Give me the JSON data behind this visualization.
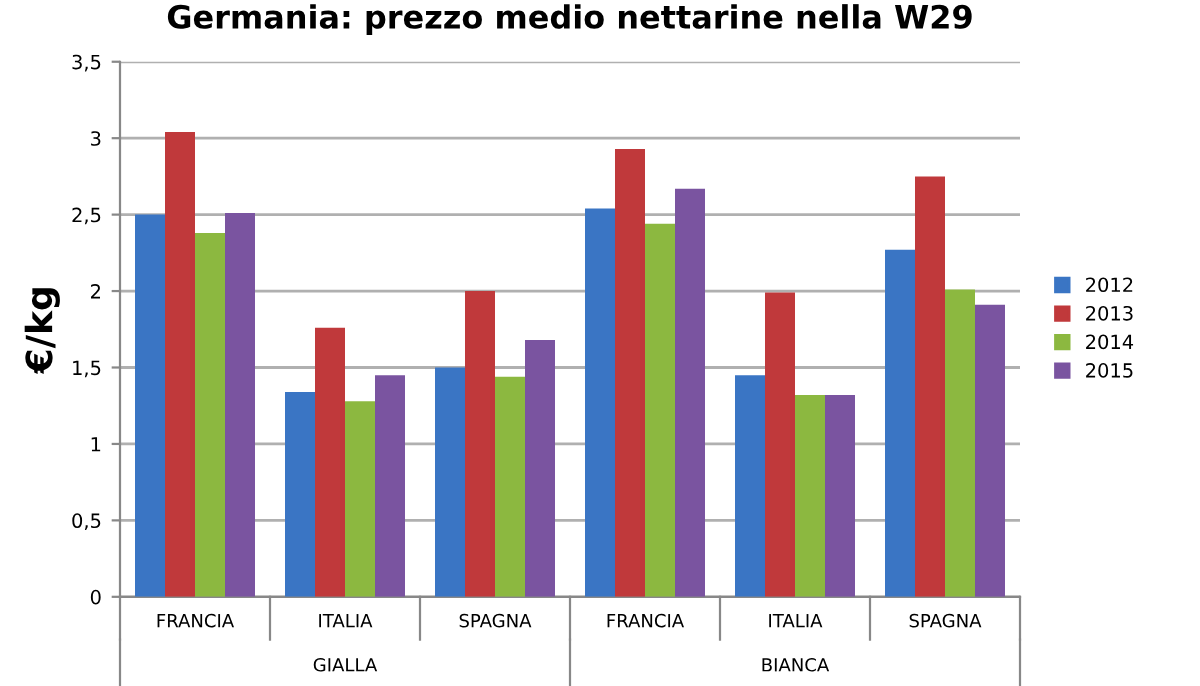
{
  "chart_data": {
    "type": "bar",
    "title": "Germania: prezzo medio nettarine nella W29",
    "ylabel": "€/kg",
    "categories": [
      "FRANCIA",
      "ITALIA",
      "SPAGNA",
      "FRANCIA",
      "ITALIA",
      "SPAGNA"
    ],
    "annotations": [
      "GIALLA",
      "BIANCA"
    ],
    "series": [
      {
        "name": "2012",
        "color": "#3a75c4",
        "values": [
          2.5,
          1.34,
          1.5,
          2.54,
          1.45,
          2.27
        ]
      },
      {
        "name": "2013",
        "color": "#c0393b",
        "values": [
          3.04,
          1.76,
          2.0,
          2.93,
          1.99,
          2.75
        ]
      },
      {
        "name": "2014",
        "color": "#8cb840",
        "values": [
          2.38,
          1.28,
          1.44,
          2.44,
          1.32,
          2.01
        ]
      },
      {
        "name": "2015",
        "color": "#7a54a0",
        "values": [
          2.51,
          1.45,
          1.68,
          2.67,
          1.32,
          1.91
        ]
      }
    ],
    "ylim": [
      0,
      3.5
    ],
    "yticks": [
      0,
      {
        "value": 0.5,
        "label": "0,5"
      },
      1,
      {
        "value": 1.5,
        "label": "1,5"
      },
      2,
      {
        "value": 2.5,
        "label": "2,5"
      },
      3,
      {
        "value": 3.5,
        "label": "3,5"
      }
    ],
    "grid": "y",
    "legend": "right"
  }
}
